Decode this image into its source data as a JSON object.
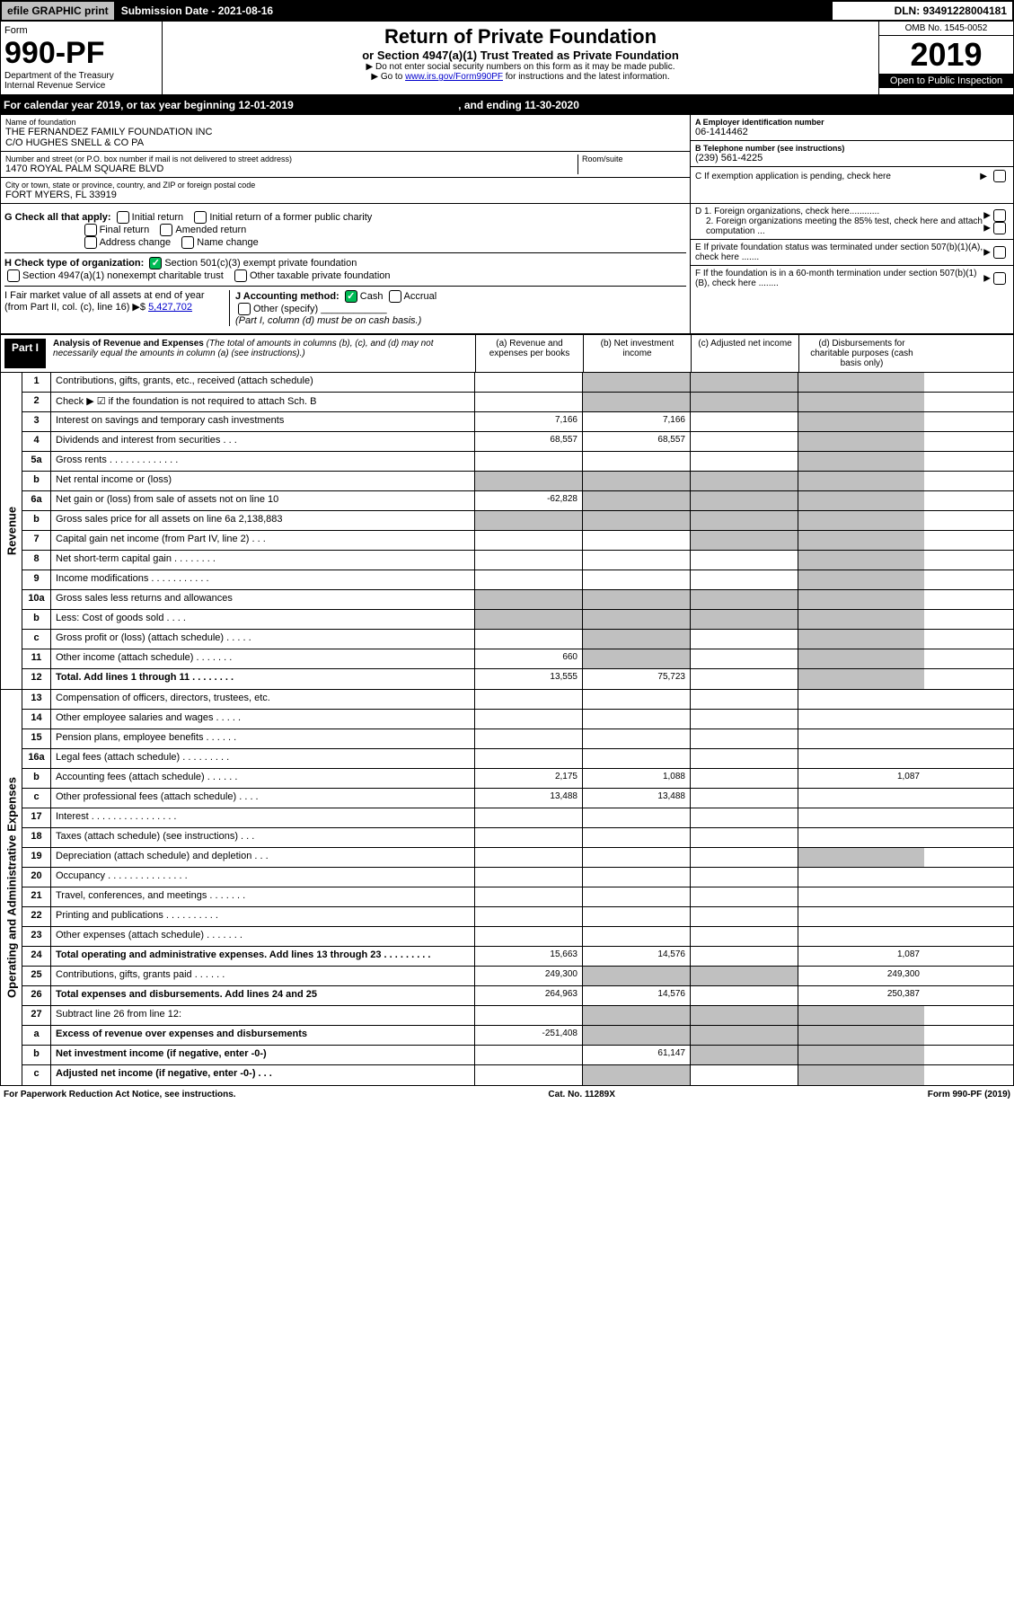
{
  "topbar": {
    "efile": "efile GRAPHIC print",
    "submission": "Submission Date - 2021-08-16",
    "dln": "DLN: 93491228004181"
  },
  "header": {
    "form": "Form",
    "number": "990-PF",
    "dept": "Department of the Treasury",
    "irs": "Internal Revenue Service",
    "title": "Return of Private Foundation",
    "subtitle": "or Section 4947(a)(1) Trust Treated as Private Foundation",
    "note1": "▶ Do not enter social security numbers on this form as it may be made public.",
    "note2_pre": "▶ Go to ",
    "note2_link": "www.irs.gov/Form990PF",
    "note2_post": " for instructions and the latest information.",
    "omb": "OMB No. 1545-0052",
    "year": "2019",
    "open": "Open to Public Inspection"
  },
  "calendar": {
    "text": "For calendar year 2019, or tax year beginning 12-01-2019",
    "mid": ", and ending 11-30-2020"
  },
  "id": {
    "name_lbl": "Name of foundation",
    "name1": "THE FERNANDEZ FAMILY FOUNDATION INC",
    "name2": "C/O HUGHES SNELL & CO PA",
    "addr_lbl": "Number and street (or P.O. box number if mail is not delivered to street address)",
    "addr": "1470 ROYAL PALM SQUARE BLVD",
    "room_lbl": "Room/suite",
    "city_lbl": "City or town, state or province, country, and ZIP or foreign postal code",
    "city": "FORT MYERS, FL  33919",
    "a_lbl": "A Employer identification number",
    "a_val": "06-1414462",
    "b_lbl": "B Telephone number (see instructions)",
    "b_val": "(239) 561-4225",
    "c_lbl": "C If exemption application is pending, check here"
  },
  "checks": {
    "g": "G Check all that apply:",
    "initial": "Initial return",
    "initial_former": "Initial return of a former public charity",
    "final": "Final return",
    "amended": "Amended return",
    "addr_chg": "Address change",
    "name_chg": "Name change",
    "h": "H Check type of organization:",
    "h1": "Section 501(c)(3) exempt private foundation",
    "h2": "Section 4947(a)(1) nonexempt charitable trust",
    "h3": "Other taxable private foundation",
    "i": "I Fair market value of all assets at end of year (from Part II, col. (c), line 16) ▶$",
    "i_val": "5,427,702",
    "j": "J Accounting method:",
    "j_cash": "Cash",
    "j_accrual": "Accrual",
    "j_other": "Other (specify)",
    "j_note": "(Part I, column (d) must be on cash basis.)",
    "d1": "D 1. Foreign organizations, check here............",
    "d2": "2. Foreign organizations meeting the 85% test, check here and attach computation ...",
    "e": "E  If private foundation status was terminated under section 507(b)(1)(A), check here .......",
    "f": "F  If the foundation is in a 60-month termination under section 507(b)(1)(B), check here ........"
  },
  "part1": {
    "label": "Part I",
    "title": "Analysis of Revenue and Expenses",
    "note": "(The total of amounts in columns (b), (c), and (d) may not necessarily equal the amounts in column (a) (see instructions).)",
    "col_a": "(a)   Revenue and expenses per books",
    "col_b": "(b)  Net investment income",
    "col_c": "(c)  Adjusted net income",
    "col_d": "(d)  Disbursements for charitable purposes (cash basis only)"
  },
  "revenue_label": "Revenue",
  "expense_label": "Operating and Administrative Expenses",
  "rows": {
    "r1": {
      "n": "1",
      "d": "Contributions, gifts, grants, etc., received (attach schedule)"
    },
    "r2": {
      "n": "2",
      "d": "Check ▶ ☑ if the foundation is not required to attach Sch. B"
    },
    "r3": {
      "n": "3",
      "d": "Interest on savings and temporary cash investments",
      "a": "7,166",
      "b": "7,166"
    },
    "r4": {
      "n": "4",
      "d": "Dividends and interest from securities  .  .  .",
      "a": "68,557",
      "b": "68,557"
    },
    "r5a": {
      "n": "5a",
      "d": "Gross rents  .  .  .  .  .  .  .  .  .  .  .  .  ."
    },
    "r5b": {
      "n": "b",
      "d": "Net rental income or (loss)"
    },
    "r6a": {
      "n": "6a",
      "d": "Net gain or (loss) from sale of assets not on line 10",
      "a": "-62,828"
    },
    "r6b": {
      "n": "b",
      "d": "Gross sales price for all assets on line 6a           2,138,883"
    },
    "r7": {
      "n": "7",
      "d": "Capital gain net income (from Part IV, line 2)  .  .  ."
    },
    "r8": {
      "n": "8",
      "d": "Net short-term capital gain  .  .  .  .  .  .  .  ."
    },
    "r9": {
      "n": "9",
      "d": "Income modifications  .  .  .  .  .  .  .  .  .  .  ."
    },
    "r10a": {
      "n": "10a",
      "d": "Gross sales less returns and allowances"
    },
    "r10b": {
      "n": "b",
      "d": "Less: Cost of goods sold  .  .  .  ."
    },
    "r10c": {
      "n": "c",
      "d": "Gross profit or (loss) (attach schedule)  .  .  .  .  ."
    },
    "r11": {
      "n": "11",
      "d": "Other income (attach schedule)  .  .  .  .  .  .  .",
      "a": "660"
    },
    "r12": {
      "n": "12",
      "d": "Total. Add lines 1 through 11  .  .  .  .  .  .  .  .",
      "a": "13,555",
      "b": "75,723"
    },
    "r13": {
      "n": "13",
      "d": "Compensation of officers, directors, trustees, etc."
    },
    "r14": {
      "n": "14",
      "d": "Other employee salaries and wages  .  .  .  .  ."
    },
    "r15": {
      "n": "15",
      "d": "Pension plans, employee benefits  .  .  .  .  .  ."
    },
    "r16a": {
      "n": "16a",
      "d": "Legal fees (attach schedule)  .  .  .  .  .  .  .  .  ."
    },
    "r16b": {
      "n": "b",
      "d": "Accounting fees (attach schedule)  .  .  .  .  .  .",
      "a": "2,175",
      "b": "1,088",
      "dd": "1,087"
    },
    "r16c": {
      "n": "c",
      "d": "Other professional fees (attach schedule)  .  .  .  .",
      "a": "13,488",
      "b": "13,488"
    },
    "r17": {
      "n": "17",
      "d": "Interest  .  .  .  .  .  .  .  .  .  .  .  .  .  .  .  ."
    },
    "r18": {
      "n": "18",
      "d": "Taxes (attach schedule) (see instructions)  .  .  ."
    },
    "r19": {
      "n": "19",
      "d": "Depreciation (attach schedule) and depletion  .  .  ."
    },
    "r20": {
      "n": "20",
      "d": "Occupancy  .  .  .  .  .  .  .  .  .  .  .  .  .  .  ."
    },
    "r21": {
      "n": "21",
      "d": "Travel, conferences, and meetings  .  .  .  .  .  .  ."
    },
    "r22": {
      "n": "22",
      "d": "Printing and publications  .  .  .  .  .  .  .  .  .  ."
    },
    "r23": {
      "n": "23",
      "d": "Other expenses (attach schedule)  .  .  .  .  .  .  ."
    },
    "r24": {
      "n": "24",
      "d": "Total operating and administrative expenses. Add lines 13 through 23  .  .  .  .  .  .  .  .  .",
      "a": "15,663",
      "b": "14,576",
      "dd": "1,087"
    },
    "r25": {
      "n": "25",
      "d": "Contributions, gifts, grants paid  .  .  .  .  .  .",
      "a": "249,300",
      "dd": "249,300"
    },
    "r26": {
      "n": "26",
      "d": "Total expenses and disbursements. Add lines 24 and 25",
      "a": "264,963",
      "b": "14,576",
      "dd": "250,387"
    },
    "r27": {
      "n": "27",
      "d": "Subtract line 26 from line 12:"
    },
    "r27a": {
      "n": "a",
      "d": "Excess of revenue over expenses and disbursements",
      "a": "-251,408"
    },
    "r27b": {
      "n": "b",
      "d": "Net investment income (if negative, enter -0-)",
      "b": "61,147"
    },
    "r27c": {
      "n": "c",
      "d": "Adjusted net income (if negative, enter -0-)  .  .  ."
    }
  },
  "footer": {
    "left": "For Paperwork Reduction Act Notice, see instructions.",
    "mid": "Cat. No. 11289X",
    "right": "Form 990-PF (2019)"
  }
}
